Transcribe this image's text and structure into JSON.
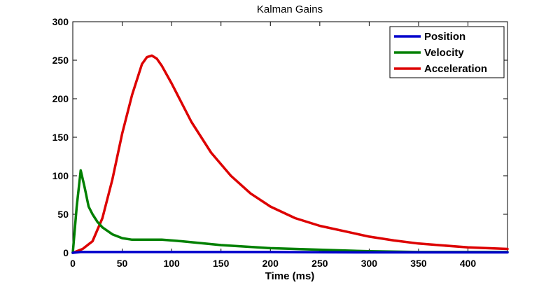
{
  "chart_data": {
    "type": "line",
    "title": "Kalman Gains",
    "xlabel": "Time (ms)",
    "ylabel": "",
    "xlim": [
      0,
      440
    ],
    "ylim": [
      0,
      300
    ],
    "xticks": [
      0,
      50,
      100,
      150,
      200,
      250,
      300,
      350,
      400
    ],
    "yticks": [
      0,
      50,
      100,
      150,
      200,
      250,
      300
    ],
    "grid": false,
    "legend_position": "top-right",
    "series": [
      {
        "name": "Position",
        "color": "#0000cc",
        "x": [
          0,
          8,
          50,
          100,
          200,
          300,
          440
        ],
        "y": [
          0,
          1,
          1,
          1,
          1,
          0.5,
          0.5
        ]
      },
      {
        "name": "Velocity",
        "color": "#008000",
        "x": [
          0,
          4,
          8,
          12,
          16,
          20,
          25,
          30,
          40,
          50,
          60,
          75,
          90,
          110,
          150,
          200,
          250,
          300,
          350,
          440
        ],
        "y": [
          0,
          60,
          107,
          85,
          60,
          50,
          40,
          33,
          24,
          19,
          17,
          17,
          17,
          15,
          10,
          6,
          4,
          2,
          1,
          1
        ]
      },
      {
        "name": "Acceleration",
        "color": "#dd0000",
        "x": [
          0,
          10,
          20,
          30,
          40,
          50,
          60,
          70,
          75,
          80,
          85,
          90,
          100,
          120,
          140,
          160,
          180,
          200,
          225,
          250,
          275,
          300,
          325,
          350,
          400,
          440
        ],
        "y": [
          0,
          5,
          15,
          45,
          95,
          155,
          205,
          245,
          254,
          256,
          252,
          243,
          220,
          170,
          130,
          100,
          77,
          60,
          45,
          35,
          28,
          21,
          16,
          12,
          7,
          5
        ]
      }
    ]
  }
}
